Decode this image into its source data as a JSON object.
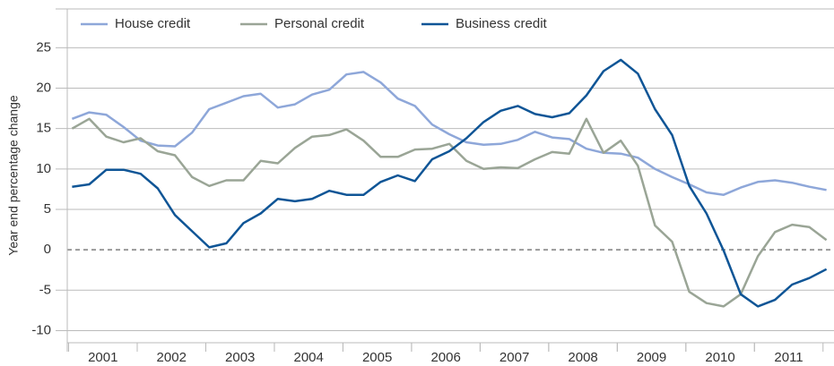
{
  "chart_data": {
    "type": "line",
    "ylabel": "Year end percentage change",
    "x": [
      2001.05,
      2001.3,
      2001.55,
      2001.8,
      2002.05,
      2002.3,
      2002.55,
      2002.8,
      2003.05,
      2003.3,
      2003.55,
      2003.8,
      2004.05,
      2004.3,
      2004.55,
      2004.8,
      2005.05,
      2005.3,
      2005.55,
      2005.8,
      2006.05,
      2006.3,
      2006.55,
      2006.8,
      2007.05,
      2007.3,
      2007.55,
      2007.8,
      2008.05,
      2008.3,
      2008.55,
      2008.8,
      2009.05,
      2009.3,
      2009.55,
      2009.8,
      2010.05,
      2010.3,
      2010.55,
      2010.8,
      2011.05,
      2011.3,
      2011.55,
      2011.8,
      2012.05
    ],
    "series": [
      {
        "name": "House credit",
        "color": "#8ea7d9",
        "values": [
          16.2,
          17,
          16.7,
          15.2,
          13.5,
          12.9,
          12.8,
          14.5,
          17.4,
          18.2,
          19,
          19.3,
          17.6,
          18,
          19.2,
          19.8,
          21.7,
          22,
          20.7,
          18.7,
          17.8,
          15.5,
          14.3,
          13.3,
          13,
          13.1,
          13.6,
          14.6,
          13.9,
          13.7,
          12.5,
          12,
          11.9,
          11.4,
          10,
          9,
          8.1,
          7.1,
          6.8,
          7.7,
          8.4,
          8.6,
          8.3,
          7.8,
          7.4
        ]
      },
      {
        "name": "Personal credit",
        "color": "#9aa596",
        "values": [
          15,
          16.2,
          14,
          13.3,
          13.8,
          12.2,
          11.7,
          9,
          7.9,
          8.6,
          8.6,
          11,
          10.7,
          12.6,
          14,
          14.2,
          14.9,
          13.5,
          11.5,
          11.5,
          12.4,
          12.5,
          13.1,
          11,
          10,
          10.2,
          10.1,
          11.2,
          12.1,
          11.9,
          16.2,
          12,
          13.5,
          10.4,
          3,
          1,
          -5.2,
          -6.6,
          -7,
          -5.5,
          -0.8,
          2.2,
          3.1,
          2.8,
          1.2
        ]
      },
      {
        "name": "Business credit",
        "color": "#0f5596",
        "values": [
          7.8,
          8.1,
          9.9,
          9.9,
          9.4,
          7.6,
          4.3,
          2.3,
          0.3,
          0.8,
          3.3,
          4.5,
          6.3,
          6,
          6.3,
          7.3,
          6.8,
          6.8,
          8.4,
          9.2,
          8.5,
          11.2,
          12.2,
          13.8,
          15.8,
          17.2,
          17.8,
          16.8,
          16.4,
          16.9,
          19.1,
          22.1,
          23.5,
          21.8,
          17.4,
          14.2,
          7.9,
          4.5,
          -0.1,
          -5.5,
          -7,
          -6.2,
          -4.3,
          -3.5,
          -2.4
        ]
      }
    ],
    "xlim": [
      2000.98,
      2012.16
    ],
    "xticks": [
      {
        "value": 2001.5,
        "label": "2001"
      },
      {
        "value": 2002.5,
        "label": "2002"
      },
      {
        "value": 2003.5,
        "label": "2003"
      },
      {
        "value": 2004.5,
        "label": "2004"
      },
      {
        "value": 2005.5,
        "label": "2005"
      },
      {
        "value": 2006.5,
        "label": "2006"
      },
      {
        "value": 2007.5,
        "label": "2007"
      },
      {
        "value": 2008.5,
        "label": "2008"
      },
      {
        "value": 2009.5,
        "label": "2009"
      },
      {
        "value": 2010.5,
        "label": "2010"
      },
      {
        "value": 2011.5,
        "label": "2011"
      }
    ],
    "ylim": [
      -11.5,
      29.8
    ],
    "yticks": [
      -10,
      -5,
      0,
      5,
      10,
      15,
      20,
      25
    ],
    "grid": true,
    "zero_line": "dashed",
    "legend": "top"
  }
}
